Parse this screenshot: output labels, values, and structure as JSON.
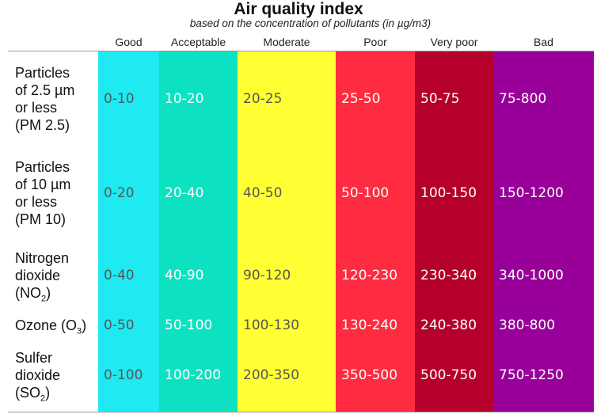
{
  "header": {
    "title": "Air quality index",
    "subtitle": "based on the concentration of pollutants (in µg/m3)"
  },
  "table": {
    "columns": [
      {
        "name": "Good",
        "color": "#1fe9f1",
        "text_color": "#555555"
      },
      {
        "name": "Acceptable",
        "color": "#0ce2c1",
        "text_color": "#ffffff"
      },
      {
        "name": "Moderate",
        "color": "#ffff33",
        "text_color": "#555555"
      },
      {
        "name": "Poor",
        "color": "#ff2b40",
        "text_color": "#ffffff"
      },
      {
        "name": "Very poor",
        "color": "#b5002b",
        "text_color": "#ffffff"
      },
      {
        "name": "Bad",
        "color": "#990099",
        "text_color": "#ffffff"
      }
    ],
    "rows": [
      {
        "label": [
          "Particles",
          "of 2.5 µm",
          "or less",
          "(PM 2.5)"
        ],
        "values": [
          "0-10",
          "10-20",
          "20-25",
          "25-50",
          "50-75",
          "75-800"
        ]
      },
      {
        "label": [
          "Particles",
          "of 10 µm",
          "or less",
          "(PM  10)"
        ],
        "values": [
          "0-20",
          "20-40",
          "40-50",
          "50-100",
          "100-150",
          "150-1200"
        ]
      },
      {
        "label": [
          "Nitrogen",
          "dioxide",
          "(NO"
        ],
        "subscript": "2",
        "suffix": ")",
        "values": [
          "0-40",
          "40-90",
          "90-120",
          "120-230",
          "230-340",
          "340-1000"
        ]
      },
      {
        "label": [
          "Ozone (O"
        ],
        "subscript": "3",
        "suffix": ")",
        "values": [
          "0-50",
          "50-100",
          "100-130",
          "130-240",
          "240-380",
          "380-800"
        ]
      },
      {
        "label": [
          "Sulfer",
          "dioxide",
          "(SO"
        ],
        "subscript": "2",
        "suffix": ")",
        "values": [
          "0-100",
          "100-200",
          "200-350",
          "350-500",
          "500-750",
          "750-1250"
        ]
      }
    ]
  }
}
